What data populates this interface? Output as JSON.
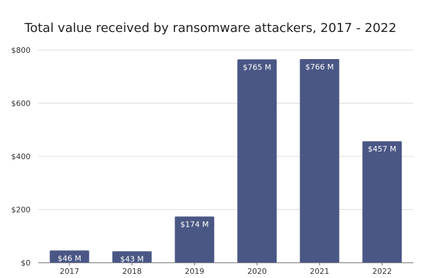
{
  "chart_data": {
    "type": "bar",
    "title": "Total value received by ransomware attackers, 2017 - 2022",
    "categories": [
      "2017",
      "2018",
      "2019",
      "2020",
      "2021",
      "2022"
    ],
    "values": [
      46,
      43,
      174,
      765,
      766,
      457
    ],
    "data_labels": [
      "$46 M",
      "$43 M",
      "$174 M",
      "$765 M",
      "$766 M",
      "$457 M"
    ],
    "y_ticks": [
      0,
      200,
      400,
      600,
      800
    ],
    "y_tick_labels": [
      "$0",
      "$200",
      "$400",
      "$600",
      "$800"
    ],
    "ylim": [
      0,
      800
    ],
    "grid": true,
    "xlabel": "",
    "ylabel": ""
  },
  "colors": {
    "bar": "#4a5785",
    "grid": "#dddddd",
    "axis": "#666666"
  }
}
